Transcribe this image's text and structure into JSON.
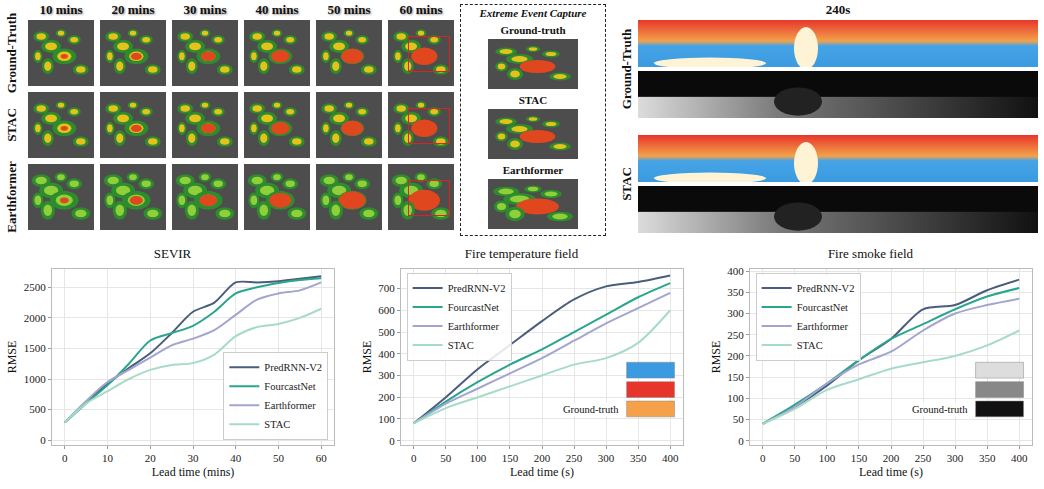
{
  "radar_panel": {
    "columns": [
      "10 mins",
      "20 mins",
      "30 mins",
      "40 mins",
      "50 mins",
      "60 mins"
    ],
    "rows": [
      "Ground-Truth",
      "STAC",
      "Earthformer"
    ],
    "inset_title": "Extreme Event Capture",
    "inset_labels": [
      "Ground-truth",
      "STAC",
      "Earthformer"
    ]
  },
  "fire_panel": {
    "title": "240s",
    "rows": [
      "Ground-Truth",
      "STAC"
    ]
  },
  "chart_data": [
    {
      "type": "line",
      "title": "SEVIR",
      "x_label": "Lead time (mins)",
      "y_label": "RMSE",
      "x": [
        0,
        5,
        10,
        15,
        20,
        25,
        30,
        35,
        40,
        45,
        50,
        55,
        60
      ],
      "series": [
        {
          "name": "PredRNN-V2",
          "color": "#4b5d7e",
          "values": [
            290,
            620,
            920,
            1180,
            1420,
            1750,
            2100,
            2250,
            2580,
            2580,
            2600,
            2640,
            2680
          ]
        },
        {
          "name": "FourcastNet",
          "color": "#2aa58e",
          "values": [
            290,
            600,
            900,
            1250,
            1630,
            1750,
            1870,
            2100,
            2400,
            2500,
            2570,
            2620,
            2650
          ]
        },
        {
          "name": "Earthformer",
          "color": "#a2a5cf",
          "values": [
            290,
            640,
            950,
            1150,
            1350,
            1550,
            1660,
            1800,
            2050,
            2300,
            2400,
            2450,
            2580
          ]
        },
        {
          "name": "STAC",
          "color": "#a6dcc6",
          "values": [
            290,
            600,
            800,
            1000,
            1150,
            1230,
            1260,
            1400,
            1700,
            1850,
            1900,
            2000,
            2150
          ]
        }
      ],
      "xlim": [
        -3,
        63
      ],
      "xticks": [
        0,
        10,
        20,
        30,
        40,
        50,
        60
      ],
      "ylim": [
        -80,
        2800
      ],
      "yticks": [
        0,
        500,
        1000,
        1500,
        2000,
        2500
      ],
      "grid": true,
      "legend": "lower right"
    },
    {
      "type": "line",
      "title": "Fire temperature field",
      "x_label": "Lead time (s)",
      "y_label": "RMSE",
      "x": [
        0,
        50,
        100,
        150,
        200,
        250,
        300,
        350,
        400
      ],
      "series": [
        {
          "name": "PredRNN-V2",
          "color": "#4b5d7e",
          "values": [
            80,
            200,
            330,
            440,
            550,
            650,
            710,
            730,
            760
          ]
        },
        {
          "name": "FourcastNet",
          "color": "#2aa58e",
          "values": [
            80,
            180,
            270,
            350,
            420,
            500,
            580,
            660,
            725
          ]
        },
        {
          "name": "Earthformer",
          "color": "#a2a5cf",
          "values": [
            80,
            170,
            240,
            310,
            380,
            460,
            540,
            610,
            680
          ]
        },
        {
          "name": "STAC",
          "color": "#a6dcc6",
          "values": [
            80,
            150,
            200,
            250,
            300,
            350,
            380,
            450,
            600
          ]
        }
      ],
      "xlim": [
        -20,
        420
      ],
      "xticks": [
        0,
        50,
        100,
        150,
        200,
        250,
        300,
        350,
        400
      ],
      "ylim": [
        -20,
        790
      ],
      "yticks": [
        0,
        100,
        200,
        300,
        400,
        500,
        600,
        700
      ],
      "grid": true,
      "legend": "upper left",
      "annotations": [
        "Ground-truth"
      ]
    },
    {
      "type": "line",
      "title": "Fire smoke field",
      "x_label": "Lead time (s)",
      "y_label": "RMSE",
      "x": [
        0,
        50,
        100,
        150,
        200,
        250,
        300,
        350,
        400
      ],
      "series": [
        {
          "name": "PredRNN-V2",
          "color": "#4b5d7e",
          "values": [
            40,
            80,
            130,
            190,
            240,
            310,
            320,
            355,
            380
          ]
        },
        {
          "name": "FourcastNet",
          "color": "#2aa58e",
          "values": [
            40,
            85,
            135,
            190,
            240,
            275,
            310,
            340,
            360
          ]
        },
        {
          "name": "Earthformer",
          "color": "#a2a5cf",
          "values": [
            40,
            80,
            135,
            180,
            210,
            260,
            300,
            320,
            335
          ]
        },
        {
          "name": "STAC",
          "color": "#a6dcc6",
          "values": [
            40,
            75,
            120,
            145,
            170,
            185,
            200,
            225,
            260
          ]
        }
      ],
      "xlim": [
        -20,
        420
      ],
      "xticks": [
        0,
        50,
        100,
        150,
        200,
        250,
        300,
        350,
        400
      ],
      "ylim": [
        -10,
        405
      ],
      "yticks": [
        0,
        50,
        100,
        150,
        200,
        250,
        300,
        350,
        400
      ],
      "grid": true,
      "legend": "upper left",
      "annotations": [
        "Ground-truth"
      ]
    }
  ]
}
